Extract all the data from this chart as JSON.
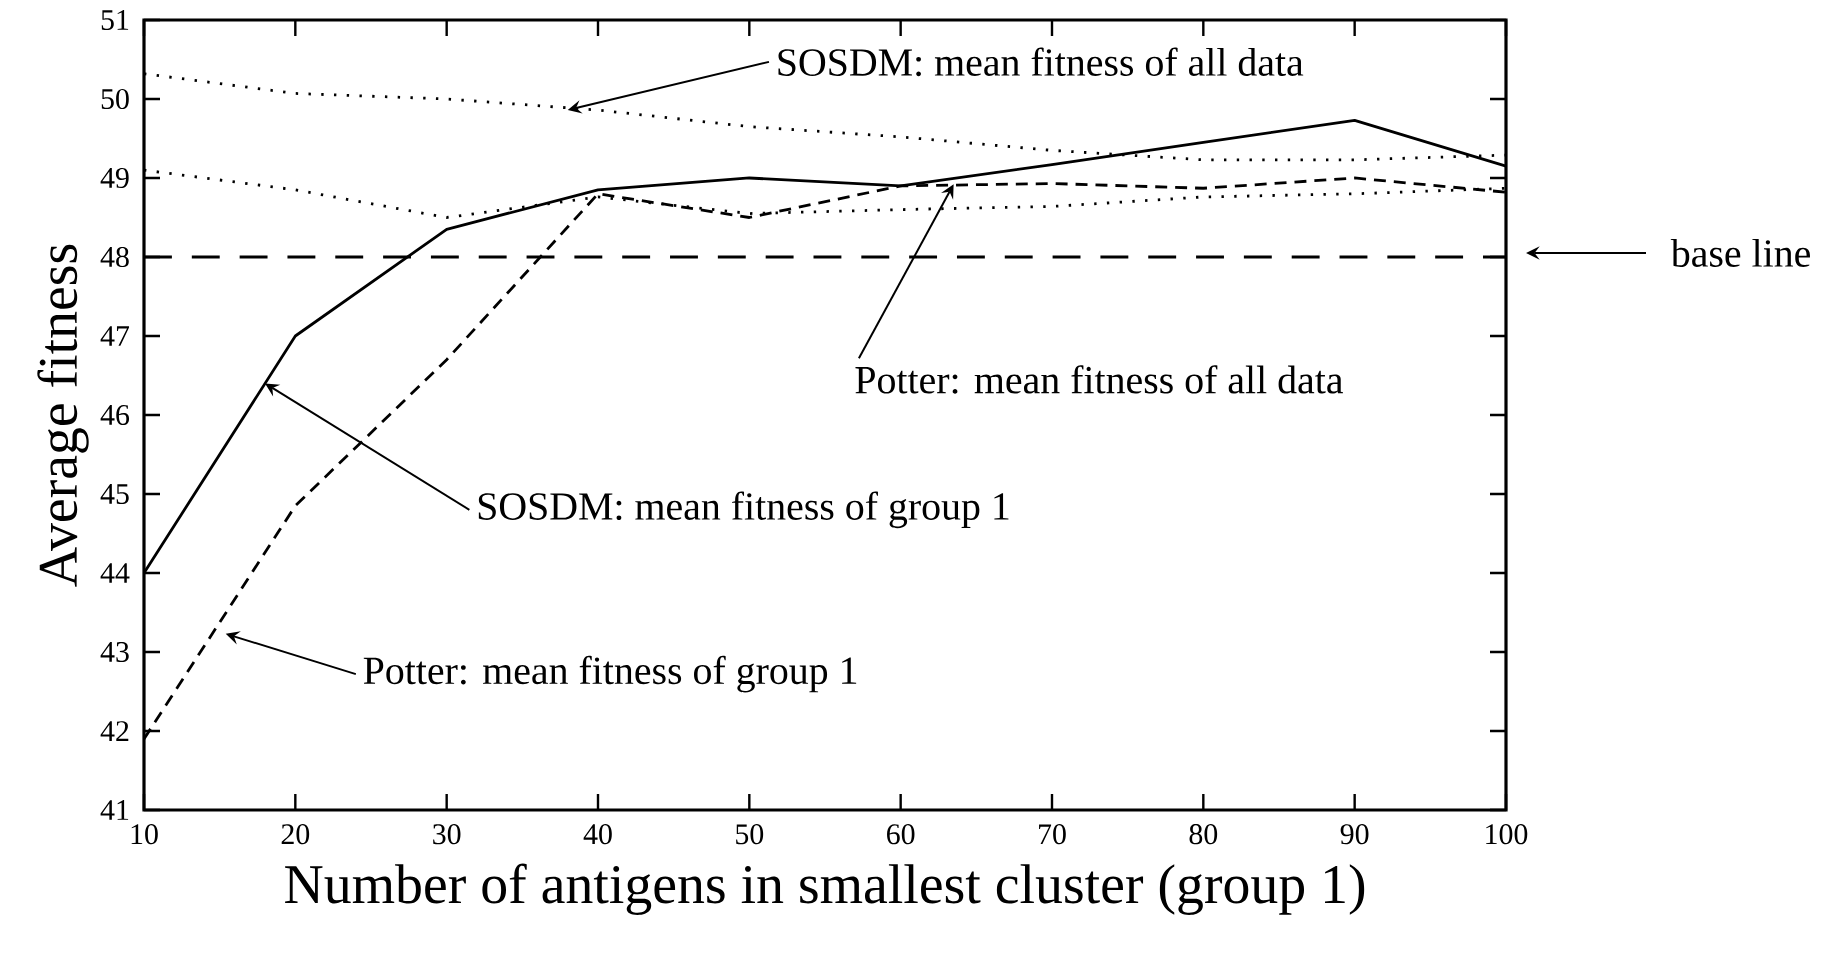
{
  "chart_data": {
    "type": "line",
    "xlabel": "Number of antigens in smallest cluster (group 1)",
    "ylabel": "Average fitness",
    "x": [
      10,
      20,
      30,
      40,
      50,
      60,
      70,
      80,
      90,
      100
    ],
    "xlim": [
      10,
      100
    ],
    "ylim": [
      41,
      51
    ],
    "xticks": [
      10,
      20,
      30,
      40,
      50,
      60,
      70,
      80,
      90,
      100
    ],
    "yticks": [
      41,
      42,
      43,
      44,
      45,
      46,
      47,
      48,
      49,
      50,
      51
    ],
    "grid": false,
    "marker": "none",
    "series": [
      {
        "color": "#000000",
        "line_style": "solid",
        "values": [
          44.0,
          47.0,
          48.35,
          48.85,
          49.0,
          48.9,
          49.17,
          49.45,
          49.73,
          49.15
        ]
      },
      {
        "color": "#000000",
        "line_style": "dashed",
        "values": [
          41.9,
          44.85,
          46.7,
          48.8,
          48.5,
          48.9,
          48.93,
          48.87,
          49.0,
          48.82
        ]
      },
      {
        "color": "#000000",
        "line_style": "dotted",
        "values": [
          50.32,
          50.07,
          50.0,
          49.86,
          49.65,
          49.52,
          49.35,
          49.23,
          49.23,
          49.29
        ]
      },
      {
        "color": "#000000",
        "line_style": "dotted",
        "values": [
          49.1,
          48.85,
          48.5,
          48.76,
          48.55,
          48.6,
          48.64,
          48.76,
          48.8,
          48.87
        ]
      }
    ],
    "ref_lines": [
      {
        "axis": "y",
        "value": 48,
        "label": "base line",
        "line_style": "dashed",
        "color": "#000000"
      }
    ],
    "annotations": [
      {
        "text": "SOSDM: mean fitness of all data",
        "x": 38,
        "y": 49.86
      },
      {
        "text": "Potter: mean fitness of all data",
        "x": 63.5,
        "y": 48.92
      },
      {
        "text": "SOSDM: mean fitness of group 1",
        "x": 18,
        "y": 46.4
      },
      {
        "text": "Potter: mean fitness of group 1",
        "x": 15.4,
        "y": 43.23
      }
    ]
  }
}
